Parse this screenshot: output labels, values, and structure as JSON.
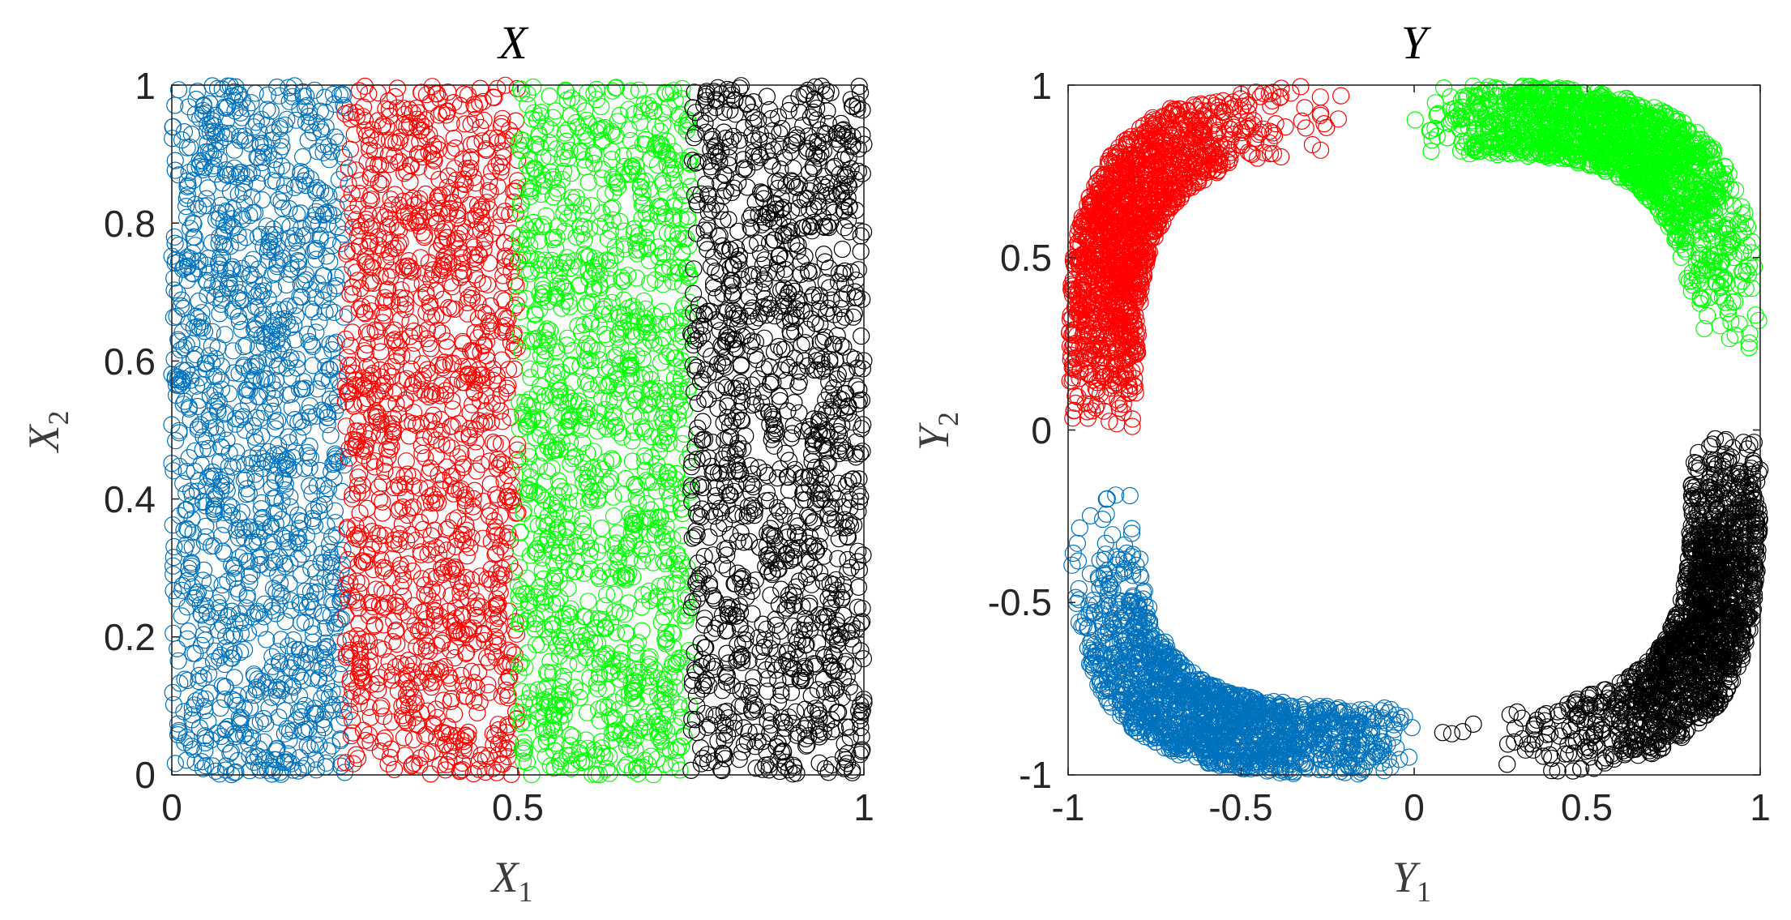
{
  "chart_data": [
    {
      "type": "scatter",
      "title": "X",
      "xlabel": "X",
      "xlabel_sub": "1",
      "ylabel": "X",
      "ylabel_sub": "2",
      "xlim": [
        0,
        1
      ],
      "ylim": [
        0,
        1
      ],
      "xticks": [
        0,
        0.5,
        1
      ],
      "xtick_labels": [
        "0",
        "0.5",
        "1"
      ],
      "yticks": [
        0,
        0.2,
        0.4,
        0.6,
        0.8,
        1
      ],
      "ytick_labels": [
        "0",
        "0.2",
        "0.4",
        "0.6",
        "0.8",
        "1"
      ],
      "marker": "open-circle",
      "groups": [
        {
          "color": "#0072BD",
          "x_range": [
            0,
            0.25
          ],
          "y_range": [
            0,
            1
          ]
        },
        {
          "color": "#FF0000",
          "x_range": [
            0.25,
            0.5
          ],
          "y_range": [
            0,
            1
          ]
        },
        {
          "color": "#00FF00",
          "x_range": [
            0.5,
            0.75
          ],
          "y_range": [
            0,
            1
          ]
        },
        {
          "color": "#000000",
          "x_range": [
            0.75,
            1
          ],
          "y_range": [
            0,
            1
          ]
        }
      ]
    },
    {
      "type": "scatter",
      "title": "Y",
      "xlabel": "Y",
      "xlabel_sub": "1",
      "ylabel": "Y",
      "ylabel_sub": "2",
      "xlim": [
        -1,
        1
      ],
      "ylim": [
        -1,
        1
      ],
      "xticks": [
        -1,
        -0.5,
        0,
        0.5,
        1
      ],
      "xtick_labels": [
        "-1",
        "-0.5",
        "0",
        "0.5",
        "1"
      ],
      "yticks": [
        -1,
        -0.5,
        0,
        0.5,
        1
      ],
      "ytick_labels": [
        "-1",
        "-0.5",
        "0",
        "0.5",
        "1"
      ],
      "marker": "open-circle",
      "shape": "ring, |Y1|^4 + |Y2|^4 = r^4, r from 0.8 to 1.0",
      "groups": [
        {
          "color": "#0072BD",
          "quadrant": "Y1<0, Y2<0",
          "dense_end": "near (0, -1)"
        },
        {
          "color": "#FF0000",
          "quadrant": "Y1<0, Y2>0",
          "dense_end": "near (-1, 0)"
        },
        {
          "color": "#00FF00",
          "quadrant": "Y1>0, Y2>0",
          "dense_end": "near (0, 1)"
        },
        {
          "color": "#000000",
          "quadrant": "Y1>0, Y2<0",
          "dense_end": "near (1, 0)"
        }
      ]
    }
  ]
}
